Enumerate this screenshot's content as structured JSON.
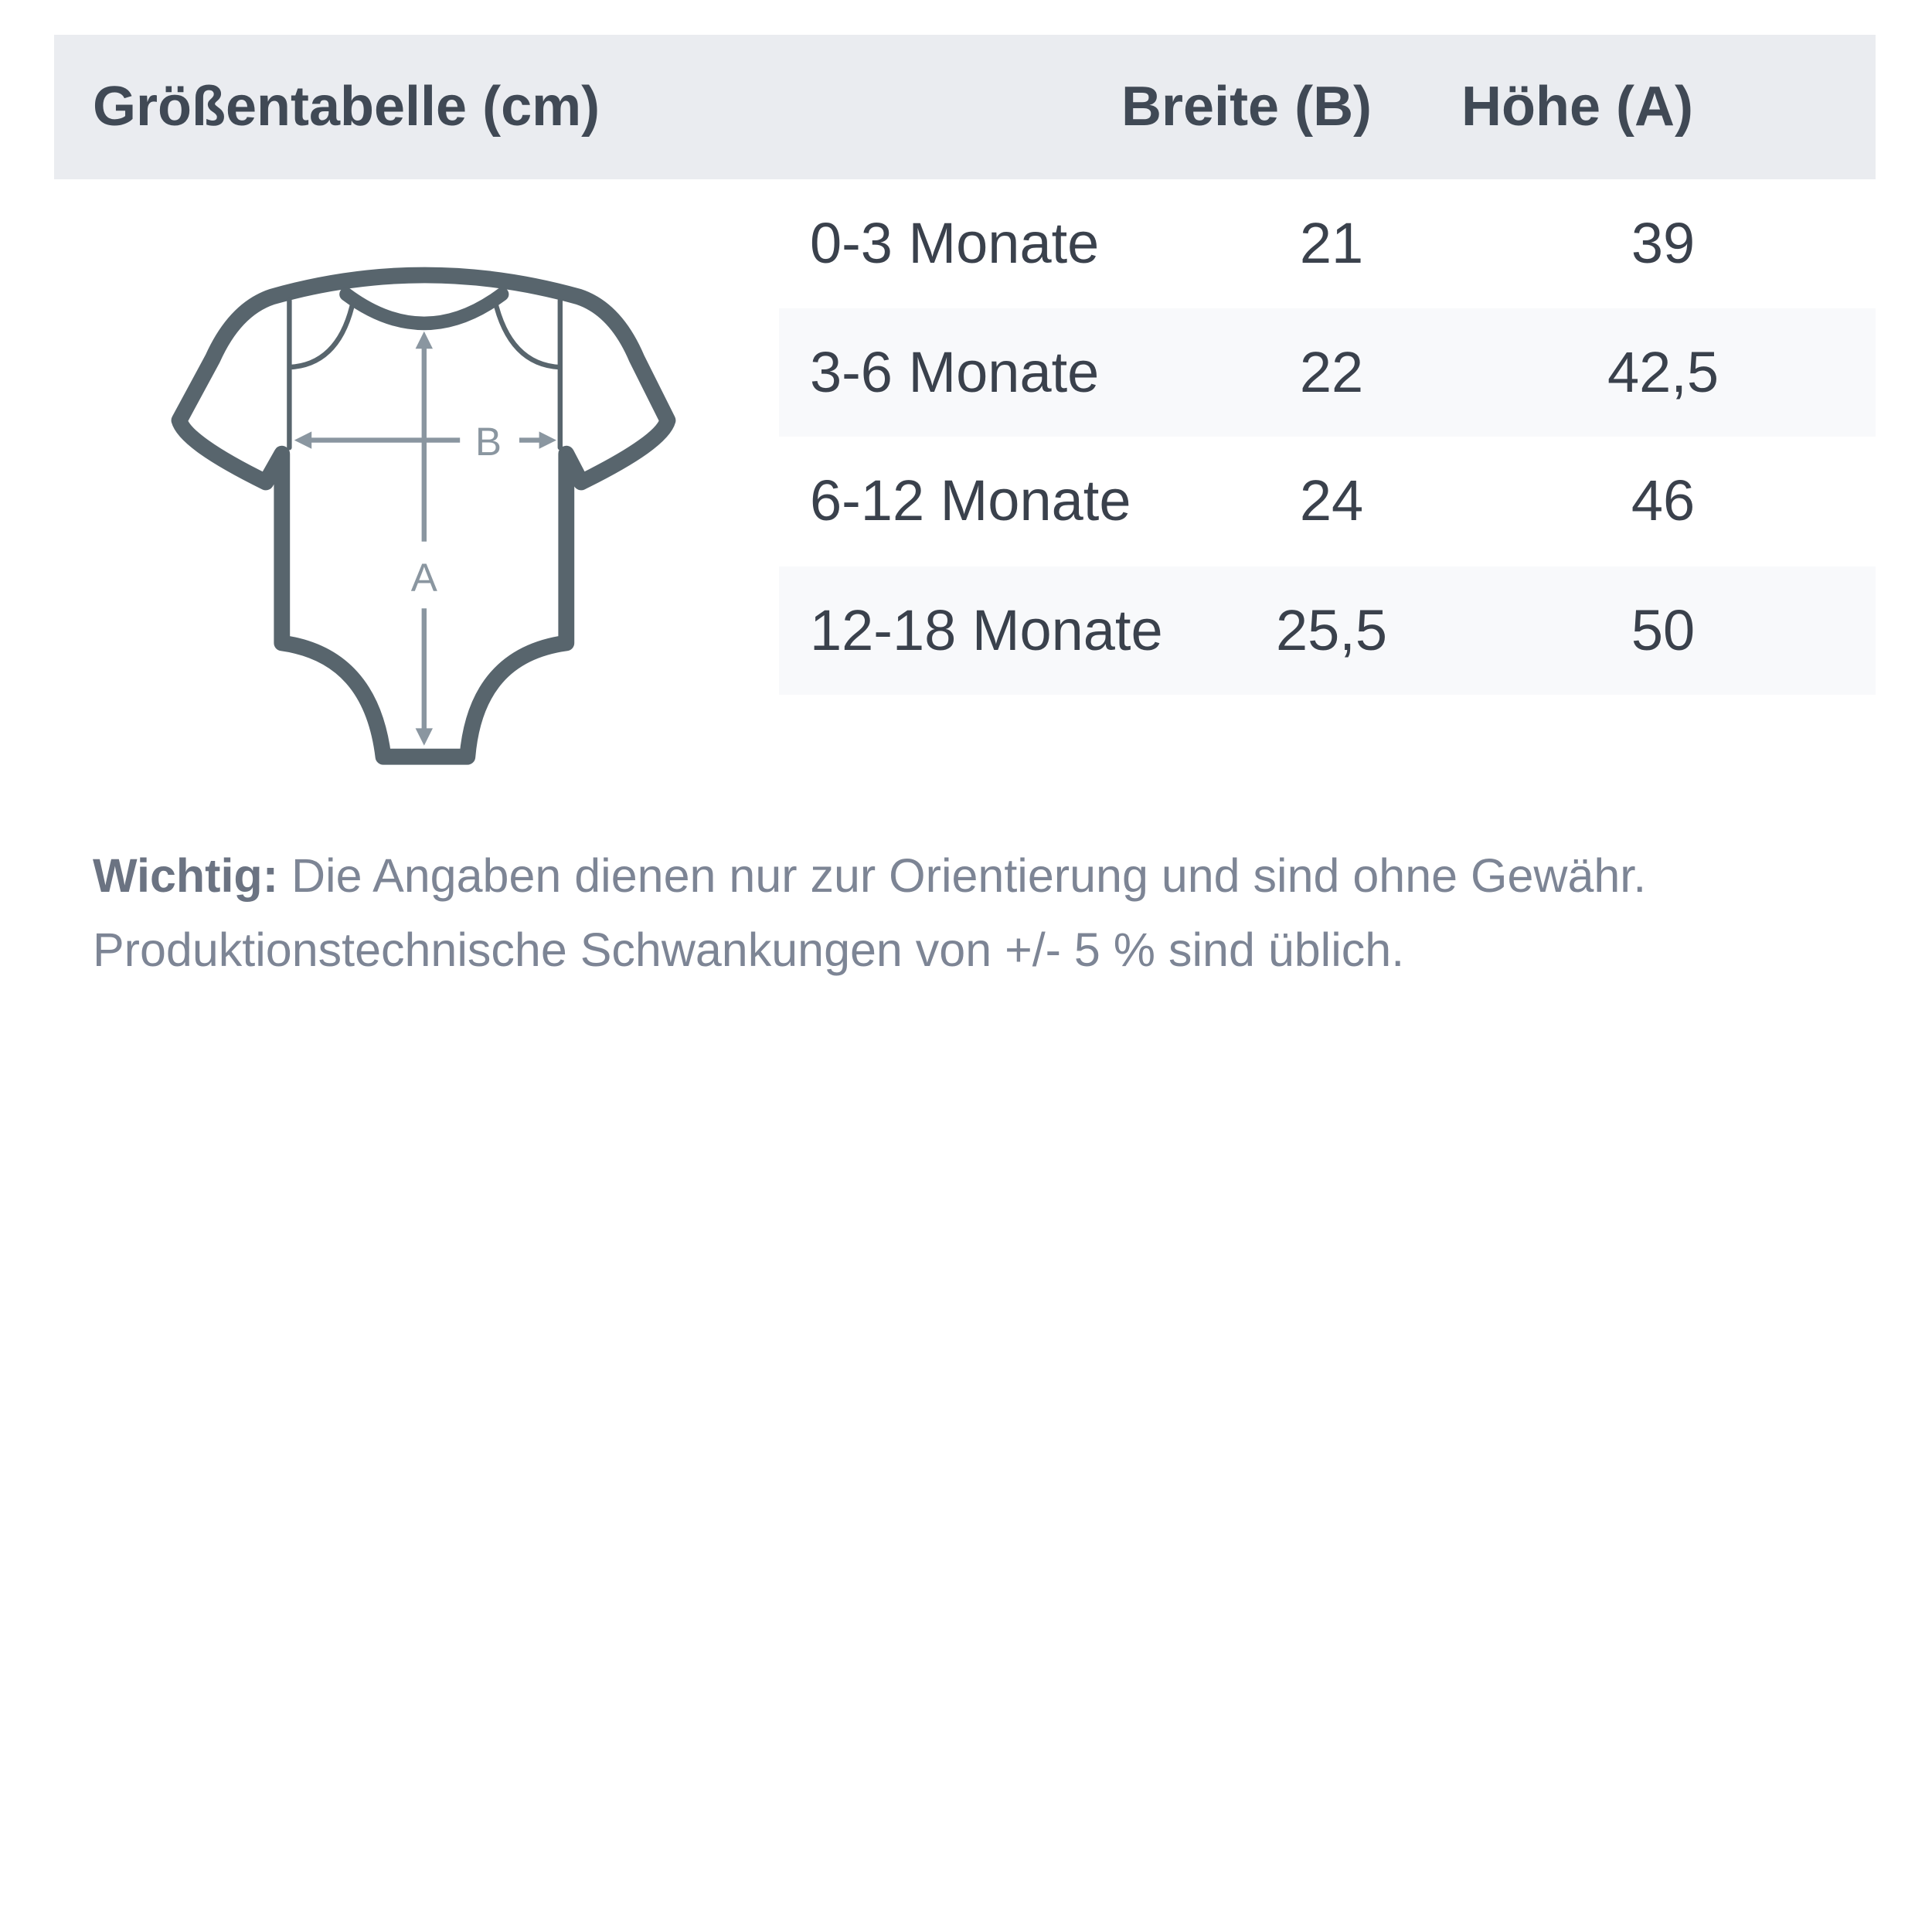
{
  "header": {
    "title": "Größentabelle (cm)",
    "col_width": "Breite (B)",
    "col_height": "Höhe (A)"
  },
  "rows": [
    {
      "size": "0-3 Monate",
      "width": "21",
      "height": "39"
    },
    {
      "size": "3-6 Monate",
      "width": "22",
      "height": "42,5"
    },
    {
      "size": "6-12 Monate",
      "width": "24",
      "height": "46"
    },
    {
      "size": "12-18 Monate",
      "width": "25,5",
      "height": "50"
    }
  ],
  "diagram": {
    "icon": "baby-bodysuit-icon",
    "label_width": "B",
    "label_height": "A"
  },
  "note": {
    "label": "Wichtig:",
    "line1": " Die Angaben dienen nur zur Orientierung und sind ohne Gewähr.",
    "line2": "Produktionstechnische Schwankungen von +/- 5 % sind üblich."
  },
  "colors": {
    "header_bg": "#eaecf0",
    "row_shade": "#f8f9fb",
    "outline": "#58656d",
    "arrow": "#8a96a0"
  }
}
